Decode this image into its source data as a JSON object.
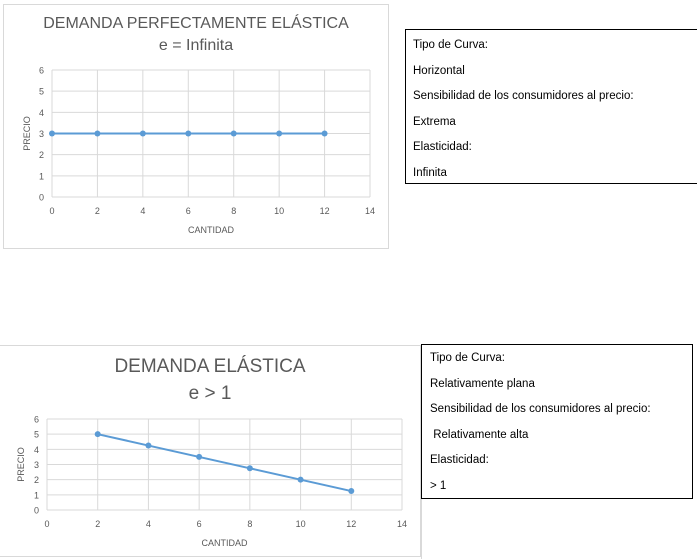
{
  "charts": [
    {
      "title_line1": "DEMANDA PERFECTAMENTE ELÁSTICA",
      "title_line2": "e = Infinita",
      "xlabel": "CANTIDAD",
      "ylabel": "PRECIO",
      "x_ticks": [
        "0",
        "2",
        "4",
        "6",
        "8",
        "10",
        "12",
        "14"
      ],
      "y_ticks": [
        "0",
        "1",
        "2",
        "3",
        "4",
        "5",
        "6"
      ]
    },
    {
      "title_line1": "DEMANDA ELÁSTICA",
      "title_line2": "e > 1",
      "xlabel": "CANTIDAD",
      "ylabel": "PRECIO",
      "x_ticks": [
        "0",
        "2",
        "4",
        "6",
        "8",
        "10",
        "12",
        "14"
      ],
      "y_ticks": [
        "0",
        "1",
        "2",
        "3",
        "4",
        "5",
        "6"
      ]
    }
  ],
  "info_boxes": [
    {
      "lines": [
        "Tipo de Curva:",
        "Horizontal",
        "Sensibilidad de los consumidores al precio:",
        "Extrema",
        "Elasticidad:",
        "Infinita"
      ]
    },
    {
      "lines": [
        "Tipo de Curva:",
        "Relativamente plana",
        "Sensibilidad de los consumidores al precio:",
        " Relativamente alta",
        "Elasticidad:",
        "> 1"
      ]
    }
  ],
  "chart_data": [
    {
      "type": "line",
      "title": "DEMANDA PERFECTAMENTE ELÁSTICA e = Infinita",
      "xlabel": "CANTIDAD",
      "ylabel": "PRECIO",
      "xlim": [
        0,
        14
      ],
      "ylim": [
        0,
        6
      ],
      "x": [
        0,
        2,
        4,
        6,
        8,
        10,
        12
      ],
      "series": [
        {
          "values": [
            3,
            3,
            3,
            3,
            3,
            3,
            3
          ]
        }
      ],
      "grid": true,
      "color": "#5b9bd5"
    },
    {
      "type": "line",
      "title": "DEMANDA ELÁSTICA e > 1",
      "xlabel": "CANTIDAD",
      "ylabel": "PRECIO",
      "xlim": [
        0,
        14
      ],
      "ylim": [
        0,
        6
      ],
      "x": [
        2,
        4,
        6,
        8,
        10,
        12
      ],
      "series": [
        {
          "values": [
            5,
            4.25,
            3.5,
            2.75,
            2,
            1.25
          ]
        }
      ],
      "grid": true,
      "color": "#5b9bd5"
    }
  ]
}
